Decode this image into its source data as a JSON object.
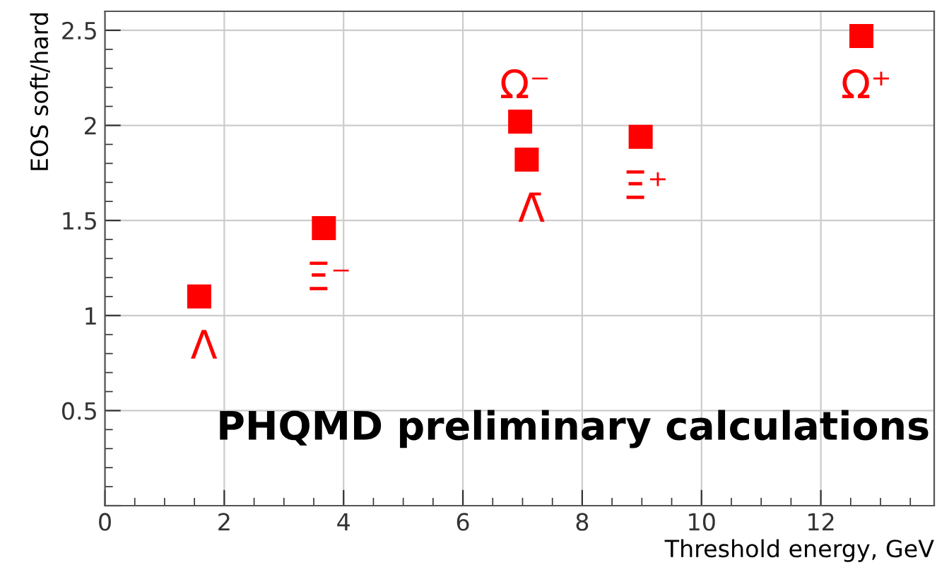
{
  "chart_data": {
    "type": "scatter",
    "xlabel": "Threshold energy, GeV",
    "ylabel": "EOS soft/hard",
    "x": [
      1.58,
      3.67,
      6.96,
      7.07,
      8.98,
      12.68
    ],
    "series": [
      {
        "color": "#ff0000",
        "values": [
          1.1,
          1.46,
          2.02,
          1.82,
          1.94,
          2.47
        ]
      }
    ],
    "marker": "square",
    "xlim": [
      0,
      13.9
    ],
    "ylim": [
      0,
      2.6
    ],
    "xticks": [
      0,
      2,
      4,
      6,
      8,
      10,
      12
    ],
    "yticks": [
      {
        "value": 0,
        "label": null
      },
      0.5,
      1,
      1.5,
      2,
      2.5
    ],
    "grid": true,
    "annotations": [
      {
        "text": "Λ",
        "x": 1.58,
        "y": 1.1
      },
      {
        "text": "Ξ⁻",
        "x": 3.67,
        "y": 1.46
      },
      {
        "text": "Ω⁻",
        "x": 6.96,
        "y": 2.02
      },
      {
        "text": "Λ̄",
        "x": 7.07,
        "y": 1.82
      },
      {
        "text": "Ξ⁺",
        "x": 8.98,
        "y": 1.94
      },
      {
        "text": "Ω⁺",
        "x": 12.68,
        "y": 2.47
      },
      "PHQMD preliminary calculations"
    ]
  }
}
